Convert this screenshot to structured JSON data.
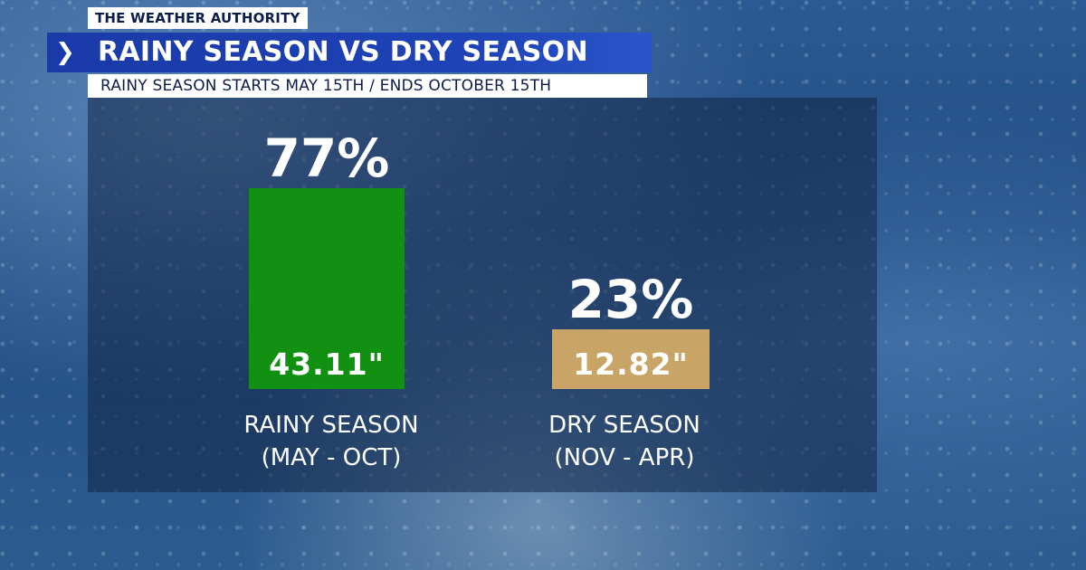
{
  "header": {
    "brand": "THE WEATHER AUTHORITY",
    "title": "RAINY SEASON VS DRY SEASON",
    "subtitle": "RAINY SEASON STARTS MAY 15TH / ENDS OCTOBER 15TH",
    "chevron_icon": "chevron-right-icon"
  },
  "colors": {
    "rainy": "#119011",
    "dry": "#c8a567",
    "title_bar": "#1d43b6"
  },
  "chart_data": {
    "type": "bar",
    "title": "RAINY SEASON VS DRY SEASON",
    "categories": [
      "RAINY SEASON (MAY - OCT)",
      "DRY SEASON (NOV - APR)"
    ],
    "series": [
      {
        "values": [
          43.11,
          12.82
        ]
      }
    ],
    "percentages": [
      77,
      23
    ],
    "bars": [
      {
        "label_line1": "RAINY SEASON",
        "label_line2": "(MAY - OCT)",
        "value": 43.11,
        "value_label": "43.11\"",
        "percent_label": "77%",
        "color": "#119011"
      },
      {
        "label_line1": "DRY SEASON",
        "label_line2": "(NOV - APR)",
        "value": 12.82,
        "value_label": "12.82\"",
        "percent_label": "23%",
        "color": "#c8a567"
      }
    ]
  }
}
